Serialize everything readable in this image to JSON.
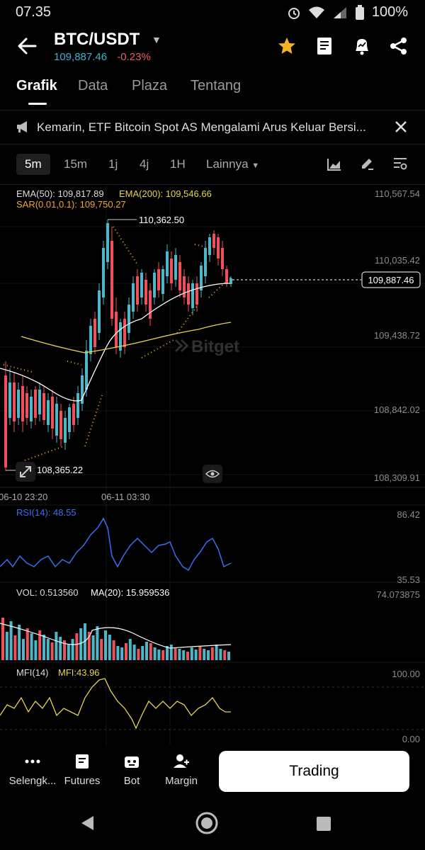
{
  "status": {
    "time": "07.35",
    "battery": "100%"
  },
  "header": {
    "pair": "BTC/USDT",
    "price": "109,887.46",
    "change": "-0.23%"
  },
  "tabs": [
    {
      "label": "Grafik",
      "active": true
    },
    {
      "label": "Data"
    },
    {
      "label": "Plaza"
    },
    {
      "label": "Tentang"
    }
  ],
  "news": {
    "text": "Kemarin, ETF Bitcoin Spot AS Mengalami Arus Keluar Bersi..."
  },
  "intervals": [
    "5m",
    "15m",
    "1j",
    "4j",
    "1H"
  ],
  "intervals_more": "Lainnya",
  "main_chart": {
    "ema50": "EMA(50): 109,817.89",
    "ema200": "EMA(200): 109,546.66",
    "sar": "SAR(0.01,0.1): 109,750.27",
    "y_labels": [
      "110,567.54",
      "110,035.42",
      "109,438.72",
      "108,842.02",
      "108,309.91"
    ],
    "x_labels": [
      "06-10 23:20",
      "06-11 03:30"
    ],
    "high_label": "110,362.50",
    "low_label": "108,365.22",
    "current_label": "109,887.46",
    "watermark": "Bitget"
  },
  "rsi": {
    "label": "RSI(14): 48.55",
    "top": "86.42",
    "bottom": "35.53"
  },
  "vol": {
    "label": "VOL: 0.513560",
    "ma": "MA(20): 15.959536",
    "top": "74.073875"
  },
  "mfi": {
    "label": "MFI(14)",
    "value": "MFI:43.96",
    "top": "100.00",
    "bottom": "0.00"
  },
  "bottom_nav": [
    {
      "label": "Selengk...",
      "icon": "more-icon"
    },
    {
      "label": "Futures",
      "icon": "futures-icon"
    },
    {
      "label": "Bot",
      "icon": "bot-icon"
    },
    {
      "label": "Margin",
      "icon": "margin-icon"
    }
  ],
  "trade_button": "Trading",
  "colors": {
    "up": "#4bb7c9",
    "down": "#f0505a",
    "ema50": "#ffffff",
    "ema200": "#e8d44d",
    "sar": "#f0a830",
    "rsi": "#3a6df0",
    "mfi": "#e8d44d",
    "accent": "#f5b324"
  }
}
